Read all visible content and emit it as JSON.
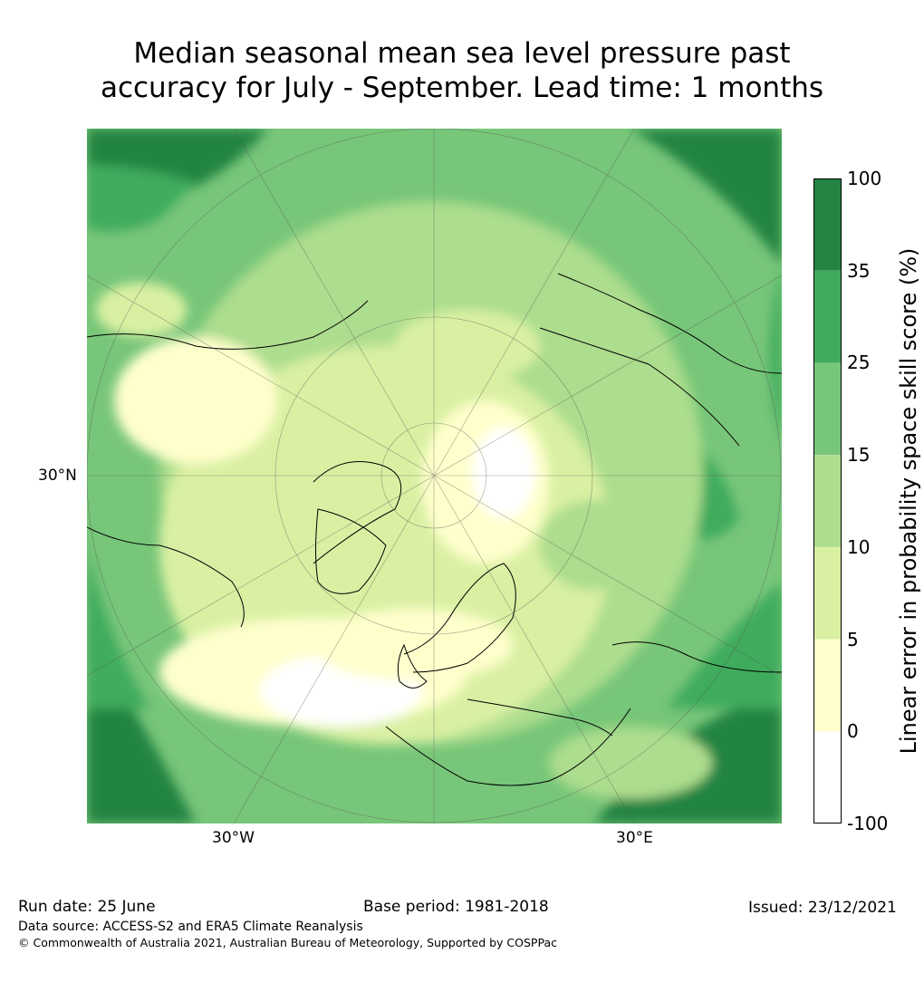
{
  "title_line1": "Median seasonal mean sea level pressure past",
  "title_line2": "accuracy for July - September. Lead time: 1 months",
  "map": {
    "projection": "north-polar-stereographic",
    "grid_labels": {
      "lat": "30°N",
      "lon_west": "30°W",
      "lon_east": "30°E"
    }
  },
  "colorbar": {
    "label": "Linear error in probability space skill score (%)",
    "ticks": [
      "100",
      "35",
      "25",
      "15",
      "10",
      "5",
      "0",
      "-100"
    ],
    "bins": [
      {
        "range": "35–100",
        "color": "#238443"
      },
      {
        "range": "25–35",
        "color": "#41ab5d"
      },
      {
        "range": "15–25",
        "color": "#78c679"
      },
      {
        "range": "10–15",
        "color": "#addd8e"
      },
      {
        "range": "5–10",
        "color": "#d9f0a3"
      },
      {
        "range": "0–5",
        "color": "#ffffcc"
      },
      {
        "range": "-100–0",
        "color": "#ffffff"
      }
    ]
  },
  "footer": {
    "run_date": "Run date: 25 June",
    "base_period": "Base period: 1981-2018",
    "issued": "Issued: 23/12/2021",
    "data_source": "Data source: ACCESS-S2 and ERA5 Climate Reanalysis",
    "copyright": "© Commonwealth of Australia 2021, Australian Bureau of Meteorology, Supported by COSPPac"
  }
}
